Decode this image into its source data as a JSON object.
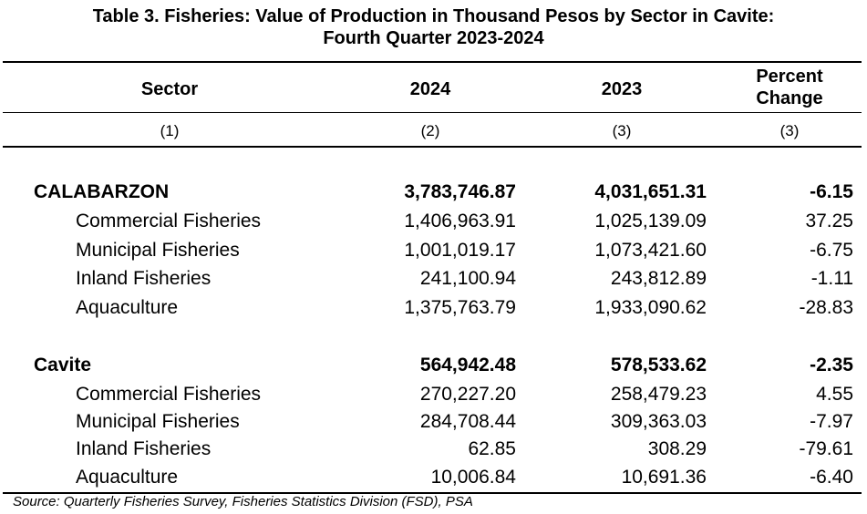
{
  "title": {
    "line1": "Table 3. Fisheries: Value of Production in Thousand Pesos by Sector in Cavite:",
    "line2": "Fourth Quarter 2023-2024"
  },
  "columns": {
    "sector": "Sector",
    "y2024": "2024",
    "y2023": "2023",
    "pct_line1": "Percent",
    "pct_line2": "Change"
  },
  "column_numbers": [
    "(1)",
    "(2)",
    "(3)",
    "(3)"
  ],
  "rows": [
    {
      "sector": "CALABARZON",
      "v2024": "3,783,746.87",
      "v2023": "4,031,651.31",
      "pct": "-6.15"
    },
    {
      "sector": "Commercial Fisheries",
      "v2024": "1,406,963.91",
      "v2023": "1,025,139.09",
      "pct": "37.25"
    },
    {
      "sector": "Municipal Fisheries",
      "v2024": "1,001,019.17",
      "v2023": "1,073,421.60",
      "pct": "-6.75"
    },
    {
      "sector": "Inland Fisheries",
      "v2024": "241,100.94",
      "v2023": "243,812.89",
      "pct": "-1.11"
    },
    {
      "sector": "Aquaculture",
      "v2024": "1,375,763.79",
      "v2023": "1,933,090.62",
      "pct": "-28.83"
    },
    {
      "sector": "Cavite",
      "v2024": "564,942.48",
      "v2023": "578,533.62",
      "pct": "-2.35"
    },
    {
      "sector": "Commercial Fisheries",
      "v2024": "270,227.20",
      "v2023": "258,479.23",
      "pct": "4.55"
    },
    {
      "sector": "Municipal Fisheries",
      "v2024": "284,708.44",
      "v2023": "309,363.03",
      "pct": "-7.97"
    },
    {
      "sector": "Inland Fisheries",
      "v2024": "62.85",
      "v2023": "308.29",
      "pct": "-79.61"
    },
    {
      "sector": "Aquaculture",
      "v2024": "10,006.84",
      "v2023": "10,691.36",
      "pct": "-6.40"
    }
  ],
  "source": "Source: Quarterly Fisheries Survey, Fisheries Statistics Division (FSD), PSA"
}
